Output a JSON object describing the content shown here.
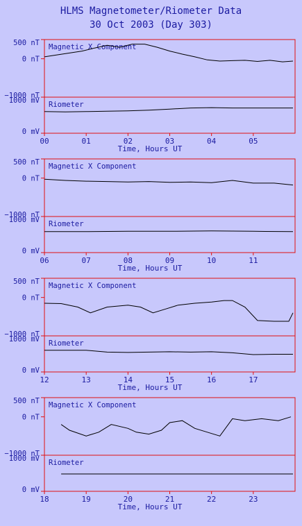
{
  "title_line1": "HLMS Magnetometer/Riometer Data",
  "title_line2": "30 Oct 2003 (Day 303)",
  "colors": {
    "frame": "#e01010",
    "text": "#1a1aa0",
    "trace": "#000000",
    "background": "#c8c8fc"
  },
  "chart_data": [
    {
      "type": "line",
      "xlabel": "Time, Hours UT",
      "xticks": [
        "00",
        "01",
        "02",
        "03",
        "04",
        "05"
      ],
      "xlim": [
        0,
        6
      ],
      "panels": [
        {
          "label": "Magnetic X Component",
          "unit": "nT",
          "yticks": [
            "500 nT",
            "0 nT",
            "−1000 nT"
          ],
          "ylim": [
            -1000,
            500
          ],
          "x": [
            0.0,
            0.3,
            0.6,
            0.9,
            1.2,
            1.5,
            1.8,
            2.1,
            2.4,
            2.7,
            3.0,
            3.3,
            3.6,
            3.9,
            4.2,
            4.5,
            4.8,
            5.1,
            5.4,
            5.7,
            5.95
          ],
          "y": [
            50,
            100,
            150,
            200,
            280,
            350,
            300,
            380,
            380,
            300,
            200,
            120,
            50,
            -30,
            -60,
            -50,
            -40,
            -70,
            -40,
            -80,
            -60
          ]
        },
        {
          "label": "Riometer",
          "unit": "mV",
          "yticks": [
            "1000 mV",
            "0 mV"
          ],
          "ylim": [
            0,
            1000
          ],
          "x": [
            0.0,
            0.5,
            1.0,
            1.5,
            2.0,
            2.5,
            3.0,
            3.5,
            4.0,
            4.5,
            5.0,
            5.5,
            5.95
          ],
          "y": [
            600,
            590,
            600,
            610,
            620,
            640,
            670,
            700,
            710,
            700,
            700,
            700,
            700
          ]
        }
      ]
    },
    {
      "type": "line",
      "xlabel": "Time, Hours UT",
      "xticks": [
        "06",
        "07",
        "08",
        "09",
        "10",
        "11"
      ],
      "xlim": [
        6,
        12
      ],
      "panels": [
        {
          "label": "Magnetic X Component",
          "unit": "nT",
          "yticks": [
            "500 nT",
            "0 nT",
            "−1000 nT"
          ],
          "ylim": [
            -1000,
            500
          ],
          "x": [
            6.0,
            6.5,
            7.0,
            7.5,
            8.0,
            8.5,
            9.0,
            9.5,
            10.0,
            10.5,
            11.0,
            11.5,
            11.95
          ],
          "y": [
            -30,
            -60,
            -80,
            -90,
            -100,
            -90,
            -110,
            -100,
            -120,
            -60,
            -130,
            -130,
            -180
          ]
        },
        {
          "label": "Riometer",
          "unit": "mV",
          "yticks": [
            "1000 mV",
            "0 mV"
          ],
          "ylim": [
            0,
            1000
          ],
          "x": [
            6.0,
            7.0,
            8.0,
            9.0,
            10.0,
            11.0,
            11.95
          ],
          "y": [
            580,
            580,
            590,
            590,
            600,
            590,
            580
          ]
        }
      ]
    },
    {
      "type": "line",
      "xlabel": "Time, Hours UT",
      "xticks": [
        "12",
        "13",
        "14",
        "15",
        "16",
        "17"
      ],
      "xlim": [
        12,
        18
      ],
      "panels": [
        {
          "label": "Magnetic X Component",
          "unit": "nT",
          "yticks": [
            "500 nT",
            "0 nT",
            "−1000 nT"
          ],
          "ylim": [
            -1000,
            500
          ],
          "x": [
            12.0,
            12.4,
            12.8,
            13.1,
            13.5,
            14.0,
            14.3,
            14.6,
            14.9,
            15.2,
            15.6,
            16.0,
            16.3,
            16.5,
            16.8,
            17.1,
            17.5,
            17.85,
            17.95
          ],
          "y": [
            -150,
            -160,
            -250,
            -400,
            -250,
            -200,
            -250,
            -400,
            -300,
            -200,
            -150,
            -120,
            -80,
            -80,
            -250,
            -600,
            -620,
            -620,
            -400
          ]
        },
        {
          "label": "Riometer",
          "unit": "mV",
          "yticks": [
            "1000 mV",
            "0 mV"
          ],
          "ylim": [
            0,
            1000
          ],
          "x": [
            12.0,
            12.5,
            13.0,
            13.5,
            14.0,
            14.5,
            15.0,
            15.5,
            16.0,
            16.5,
            17.0,
            17.5,
            17.95
          ],
          "y": [
            600,
            600,
            600,
            550,
            540,
            550,
            560,
            550,
            560,
            530,
            480,
            490,
            490
          ]
        }
      ]
    },
    {
      "type": "line",
      "xlabel": "Time, Hours UT",
      "xticks": [
        "18",
        "19",
        "20",
        "21",
        "22",
        "23"
      ],
      "xlim": [
        18,
        24
      ],
      "panels": [
        {
          "label": "Magnetic X Component",
          "unit": "nT",
          "yticks": [
            "500 nT",
            "0 nT",
            "−1000 nT"
          ],
          "ylim": [
            -1000,
            500
          ],
          "x": [
            18.4,
            18.6,
            19.0,
            19.3,
            19.6,
            20.0,
            20.2,
            20.5,
            20.8,
            21.0,
            21.3,
            21.6,
            21.9,
            22.2,
            22.5,
            22.8,
            23.2,
            23.6,
            23.9
          ],
          "y": [
            -200,
            -350,
            -500,
            -400,
            -200,
            -300,
            -400,
            -450,
            -350,
            -150,
            -100,
            -300,
            -400,
            -500,
            -50,
            -100,
            -50,
            -100,
            0
          ]
        },
        {
          "label": "Riometer",
          "unit": "mV",
          "yticks": [
            "1000 mV",
            "0 mV"
          ],
          "ylim": [
            0,
            1000
          ],
          "x": [
            18.4,
            19.0,
            20.0,
            21.0,
            22.0,
            23.0,
            23.95
          ],
          "y": [
            480,
            480,
            480,
            480,
            480,
            480,
            480
          ]
        }
      ]
    }
  ]
}
